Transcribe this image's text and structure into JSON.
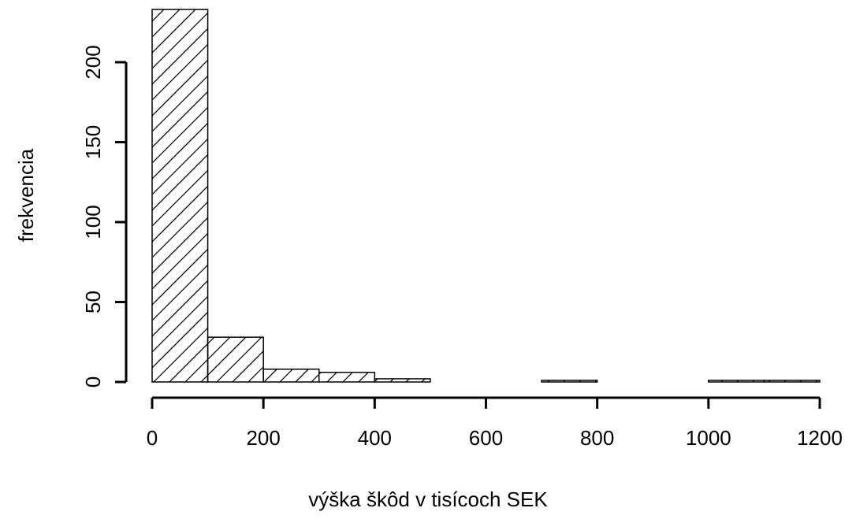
{
  "chart_data": {
    "type": "histogram",
    "x_label": "výška škôd v tisícoch SEK",
    "y_label": "frekvencia",
    "bins": [
      0,
      100,
      200,
      300,
      400,
      500,
      600,
      700,
      800,
      900,
      1000,
      1100,
      1200
    ],
    "counts": [
      233,
      28,
      8,
      6,
      2,
      0,
      0,
      1,
      0,
      0,
      1,
      1
    ],
    "color": "#000000",
    "hatch": true,
    "xlim": [
      0,
      1200
    ],
    "ylim": [
      0,
      233
    ],
    "xticks": [
      0,
      200,
      400,
      600,
      800,
      1000,
      1200
    ],
    "yticks": [
      0,
      50,
      100,
      150,
      200
    ]
  }
}
